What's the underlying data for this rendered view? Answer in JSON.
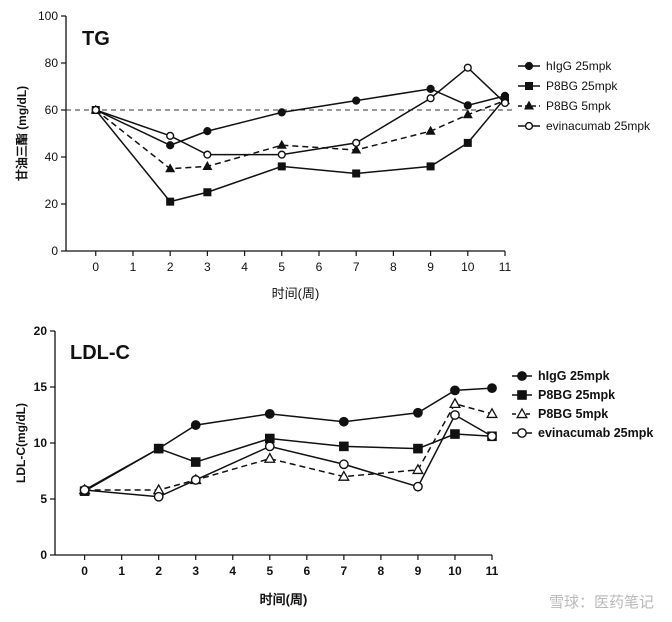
{
  "chart_data": [
    {
      "type": "line",
      "title": "TG",
      "xlabel": "时间(周)",
      "ylabel": "甘油三酯 (mg/dL)",
      "x": [
        0,
        2,
        3,
        5,
        7,
        9,
        10,
        11
      ],
      "xticks": [
        "0",
        "1",
        "2",
        "3",
        "4",
        "5",
        "6",
        "7",
        "8",
        "9",
        "10",
        "11"
      ],
      "xlim": [
        -0.8,
        11
      ],
      "ylim": [
        0,
        100
      ],
      "yticks": [
        "0",
        "20",
        "40",
        "60",
        "80",
        "100"
      ],
      "reference_line": 60,
      "legend_position": "right",
      "series": [
        {
          "name": "hIgG 25mpk",
          "marker": "circle-filled",
          "dash": "solid",
          "values": [
            60,
            45,
            51,
            59,
            64,
            69,
            62,
            66
          ]
        },
        {
          "name": "P8BG 25mpk",
          "marker": "square-filled",
          "dash": "solid",
          "values": [
            60,
            21,
            25,
            36,
            33,
            36,
            46,
            65
          ]
        },
        {
          "name": "P8BG 5mpk",
          "marker": "triangle-filled",
          "dash": "dashed",
          "values": [
            60,
            35,
            36,
            45,
            43,
            51,
            58,
            64
          ]
        },
        {
          "name": "evinacumab 25mpk",
          "marker": "circle-open",
          "dash": "solid",
          "values": [
            60,
            49,
            41,
            41,
            46,
            65,
            78,
            63
          ]
        }
      ]
    },
    {
      "type": "line",
      "title": "LDL-C",
      "xlabel": "时间(周)",
      "ylabel": "LDL-C(mg/dL)",
      "x": [
        0,
        2,
        3,
        5,
        7,
        9,
        10,
        11
      ],
      "xticks": [
        "0",
        "1",
        "2",
        "3",
        "4",
        "5",
        "6",
        "7",
        "8",
        "9",
        "10",
        "11"
      ],
      "xlim": [
        -0.8,
        11
      ],
      "ylim": [
        0,
        20
      ],
      "yticks": [
        "0",
        "5",
        "10",
        "15",
        "20"
      ],
      "legend_position": "right",
      "series": [
        {
          "name": "hIgG 25mpk",
          "marker": "circle-filled",
          "dash": "solid",
          "values": [
            5.8,
            9.5,
            11.6,
            12.6,
            11.9,
            12.7,
            14.7,
            14.9
          ]
        },
        {
          "name": "P8BG 25mpk",
          "marker": "square-filled",
          "dash": "solid",
          "values": [
            5.7,
            9.5,
            8.3,
            10.4,
            9.7,
            9.5,
            10.8,
            10.6
          ]
        },
        {
          "name": "P8BG 5mpk",
          "marker": "triangle-open",
          "dash": "dashed",
          "values": [
            5.8,
            5.8,
            6.7,
            8.6,
            7.0,
            7.6,
            13.5,
            12.6
          ]
        },
        {
          "name": "evinacumab 25mpk",
          "marker": "circle-open",
          "dash": "solid",
          "values": [
            5.8,
            5.2,
            6.7,
            9.7,
            8.1,
            6.1,
            12.5,
            10.6
          ]
        }
      ]
    }
  ],
  "watermark": "雪球：医药笔记"
}
